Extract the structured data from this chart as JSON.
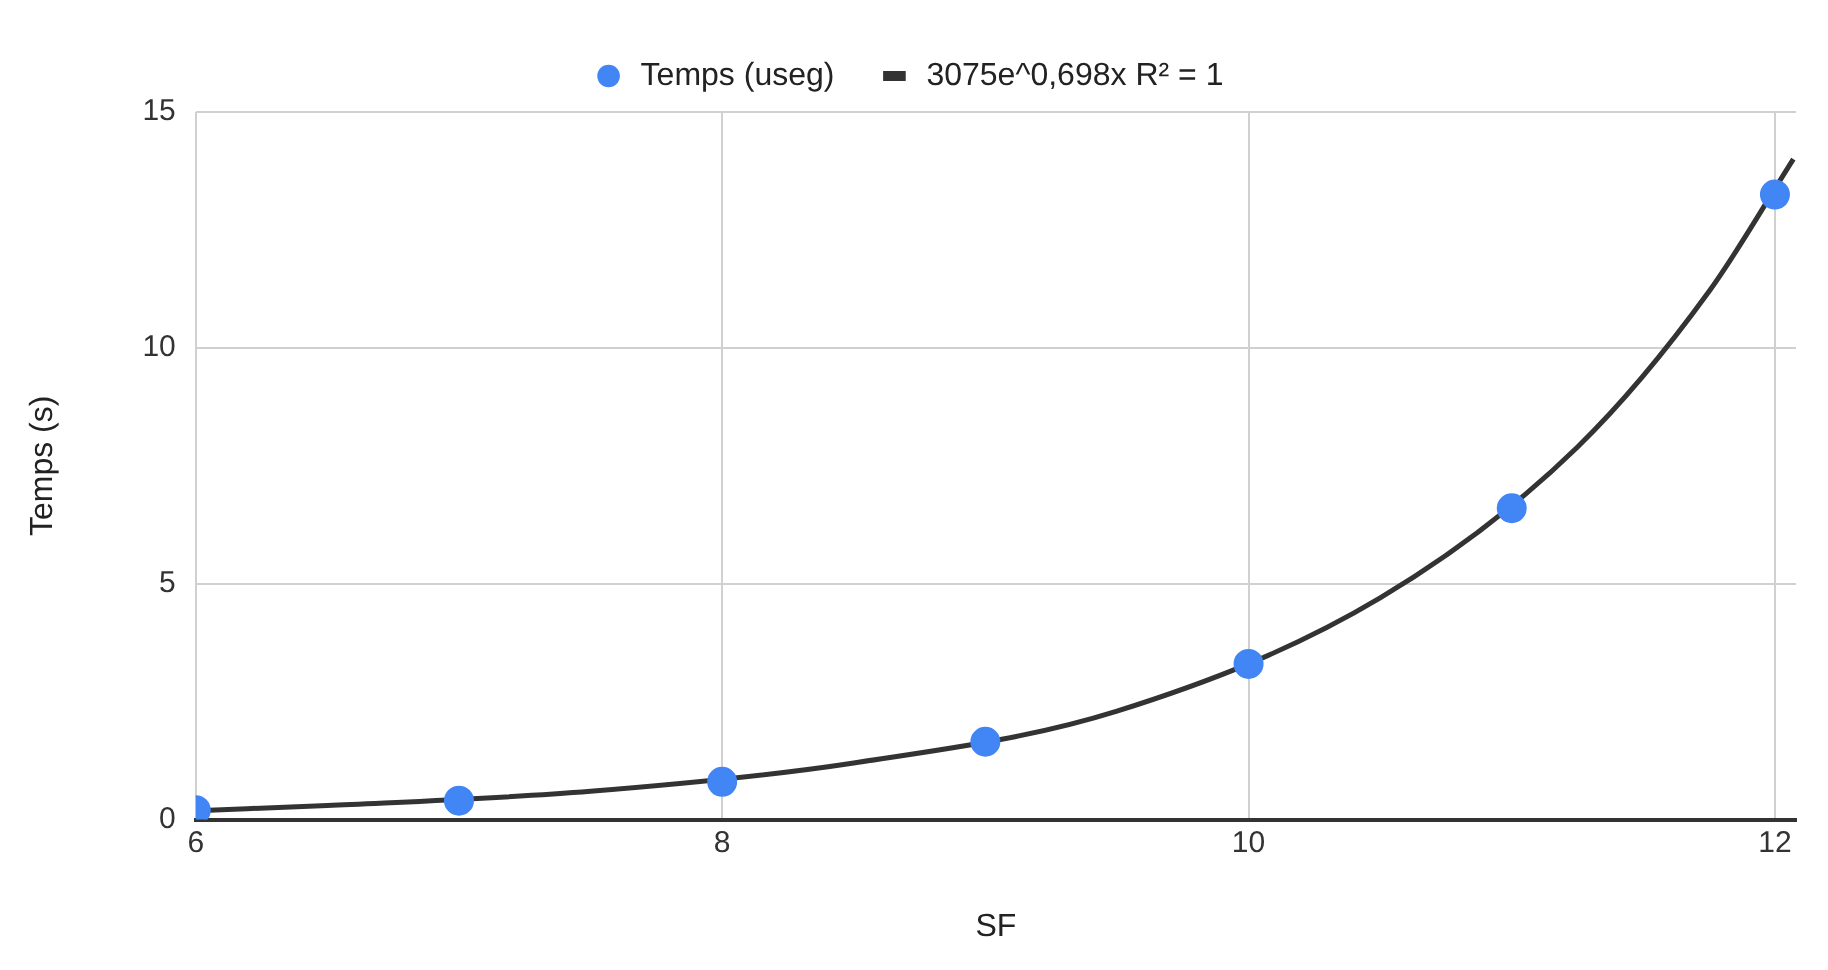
{
  "chart_data": {
    "type": "scatter",
    "xlabel": "SF",
    "ylabel": "Temps (s)",
    "xlim": [
      6,
      12.08
    ],
    "xticks": [
      6,
      8,
      10,
      12
    ],
    "ylim": [
      0,
      15
    ],
    "yticks": [
      0,
      5,
      10,
      15
    ],
    "grid": true,
    "legend": "top",
    "marker": "circle",
    "series": [
      {
        "name": "Temps (useg)",
        "color": "#4285f4",
        "x": [
          6,
          7,
          8,
          9,
          10,
          11,
          12
        ],
        "values": [
          0.2,
          0.4,
          0.8,
          1.65,
          3.3,
          6.6,
          13.25
        ]
      },
      {
        "name": "3075e^0,698x R² = 1",
        "type": "line",
        "color": "#333333",
        "marker": "none",
        "line_style": "solid",
        "x": [
          6.05,
          6.5,
          7.5,
          8.5,
          9.5,
          10.5,
          11.25,
          11.75,
          12.07
        ],
        "values": [
          0.2,
          0.3,
          0.6,
          1.2,
          2.3,
          4.7,
          7.9,
          11.2,
          14
        ]
      }
    ]
  }
}
